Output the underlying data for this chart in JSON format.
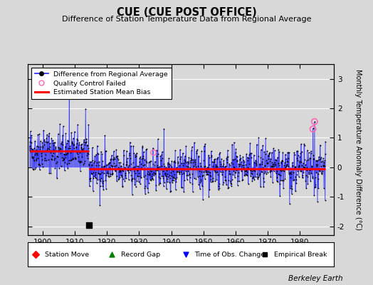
{
  "title": "CUE (CUE POST OFFICE)",
  "subtitle": "Difference of Station Temperature Data from Regional Average",
  "ylabel": "Monthly Temperature Anomaly Difference (°C)",
  "xlabel_years": [
    1900,
    1910,
    1920,
    1930,
    1940,
    1950,
    1960,
    1970,
    1980
  ],
  "xlim": [
    1895.5,
    1990.5
  ],
  "ylim": [
    -2.3,
    3.5
  ],
  "yticks": [
    -2,
    -1,
    0,
    1,
    2,
    3
  ],
  "background_color": "#d8d8d8",
  "plot_bg_color": "#d8d8d8",
  "line_color": "#3333ff",
  "dot_color": "#000000",
  "bias_color": "#ff0000",
  "qc_color": "#ff69b4",
  "grid_color": "#ffffff",
  "watermark": "Berkeley Earth",
  "seed": 42,
  "bias_level_1": 0.55,
  "bias_level_2": -0.05,
  "bias_break": 1914.5,
  "empirical_break_x": 1914.5,
  "empirical_break_y": -1.95,
  "qc_x1": 1934.5,
  "qc_y1": 0.5,
  "qc_x2": 1984.5,
  "qc_y2": 1.55,
  "qc_x3": 1984.0,
  "qc_y3": 1.3
}
